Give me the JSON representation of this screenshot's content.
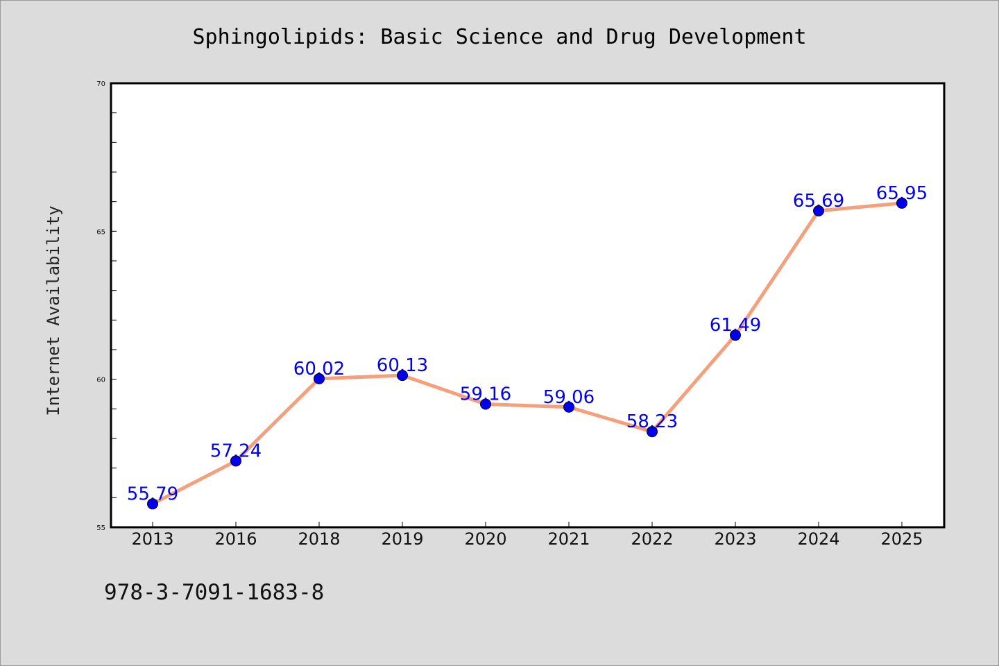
{
  "colors": {
    "background": "#dcdcdc",
    "plot_background": "#ffffff",
    "line": "#f4a07c",
    "marker": "#0000ee",
    "data_label": "#0000ee"
  },
  "chart_data": {
    "type": "line",
    "title": "Sphingolipids: Basic Science and Drug Development",
    "xlabel": "",
    "ylabel": "Internet Availability",
    "categories": [
      "2013",
      "2016",
      "2018",
      "2019",
      "2020",
      "2021",
      "2022",
      "2023",
      "2024",
      "2025"
    ],
    "values": [
      55.79,
      57.24,
      60.02,
      60.13,
      59.16,
      59.06,
      58.23,
      61.49,
      65.69,
      65.95
    ],
    "data_labels": [
      "55.79",
      "57.24",
      "60.02",
      "60.13",
      "59.16",
      "59.06",
      "58.23",
      "61.49",
      "65.69",
      "65.95"
    ],
    "ylim": [
      55,
      70
    ],
    "yticks": [
      "55",
      "60",
      "65",
      "70"
    ],
    "grid": false,
    "legend": "none"
  },
  "footer": {
    "isbn": "978-3-7091-1683-8"
  }
}
